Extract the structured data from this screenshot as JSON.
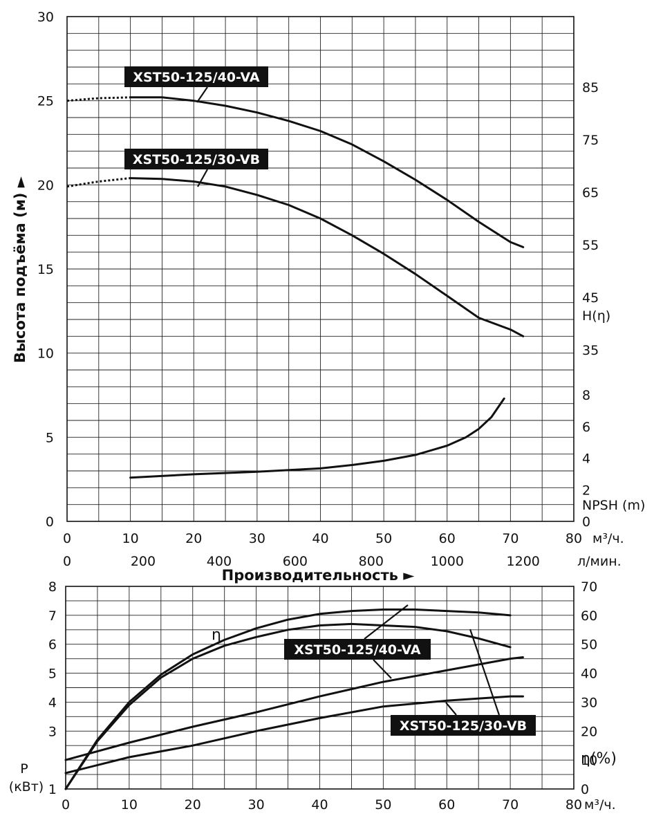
{
  "chart_data": [
    {
      "type": "line",
      "ylabel": "Высота подъёма (м) ►",
      "ylim": [
        0,
        30
      ],
      "yticks": [
        0,
        5,
        10,
        15,
        20,
        25,
        30
      ],
      "xlim": [
        0,
        80
      ],
      "xticks": [
        0,
        10,
        20,
        30,
        40,
        50,
        60,
        70,
        80
      ],
      "x_unit": "м³/ч.",
      "x2ticks": [
        "0",
        "200",
        "400",
        "600",
        "800",
        "1000",
        "1200"
      ],
      "x2_unit": "л/мин.",
      "xlabel": "Производительность ►",
      "right_h_ticks": [
        "85",
        "75",
        "65",
        "55",
        "45",
        "35"
      ],
      "right_h_label": "H(η)",
      "right_npsh_ticks": [
        "8",
        "6",
        "4",
        "2",
        "0"
      ],
      "right_npsh_label": "NPSH (m)",
      "grid": true,
      "series": [
        {
          "name": "XST50-125/40-VA",
          "x": [
            10,
            15,
            20,
            25,
            30,
            35,
            40,
            45,
            50,
            55,
            60,
            65,
            70,
            72
          ],
          "values": [
            25.2,
            25.2,
            25.0,
            24.7,
            24.3,
            23.8,
            23.2,
            22.4,
            21.4,
            20.3,
            19.1,
            17.8,
            16.6,
            16.3
          ],
          "dotted_start": {
            "x": [
              0,
              5,
              10
            ],
            "values": [
              25.0,
              25.15,
              25.2
            ]
          }
        },
        {
          "name": "XST50-125/30-VB",
          "x": [
            10,
            15,
            20,
            25,
            30,
            35,
            40,
            45,
            50,
            55,
            60,
            65,
            70,
            72
          ],
          "values": [
            20.4,
            20.35,
            20.2,
            19.9,
            19.4,
            18.8,
            18.0,
            17.0,
            15.9,
            14.7,
            13.4,
            12.1,
            11.4,
            11.0
          ],
          "dotted_start": {
            "x": [
              0,
              5,
              10
            ],
            "values": [
              19.9,
              20.2,
              20.4
            ]
          }
        },
        {
          "name": "NPSH",
          "x": [
            10,
            20,
            30,
            40,
            45,
            50,
            55,
            60,
            63,
            65,
            67,
            69
          ],
          "values": [
            2.6,
            2.8,
            2.95,
            3.15,
            3.35,
            3.6,
            3.95,
            4.5,
            5.0,
            5.5,
            6.2,
            7.3
          ]
        }
      ]
    },
    {
      "type": "line",
      "ylabel": "P (кВт)",
      "ylim_left": [
        1,
        8
      ],
      "yticks_left": [
        1,
        3,
        4,
        5,
        6,
        7,
        8
      ],
      "ylabel_right": "η(%)",
      "ylim_right": [
        0,
        70
      ],
      "yticks_right": [
        0,
        10,
        20,
        30,
        40,
        50,
        60,
        70
      ],
      "xlim": [
        0,
        80
      ],
      "xticks": [
        0,
        10,
        20,
        30,
        40,
        50,
        60,
        70,
        80
      ],
      "x_unit": "м³/ч.",
      "eta_label": "η",
      "grid": true,
      "series": [
        {
          "name": "η XST50-125/40-VA",
          "x": [
            0,
            5,
            10,
            15,
            20,
            25,
            30,
            35,
            40,
            45,
            50,
            55,
            60,
            65,
            70
          ],
          "values": [
            0,
            17,
            30,
            39.5,
            46.5,
            51.5,
            55.5,
            58.5,
            60.5,
            61.5,
            62,
            62,
            61.5,
            61,
            60
          ]
        },
        {
          "name": "η XST50-125/30-VB",
          "x": [
            0,
            5,
            10,
            15,
            20,
            25,
            30,
            35,
            40,
            45,
            50,
            55,
            60,
            65,
            70
          ],
          "values": [
            0,
            16.5,
            29,
            38.5,
            45,
            49.5,
            52.5,
            55,
            56.5,
            57,
            56.5,
            56,
            54.5,
            52,
            49
          ]
        },
        {
          "name": "P XST50-125/40-VA",
          "x": [
            0,
            10,
            20,
            30,
            40,
            50,
            60,
            70,
            72
          ],
          "values": [
            2.0,
            2.6,
            3.15,
            3.65,
            4.2,
            4.7,
            5.1,
            5.5,
            5.55
          ]
        },
        {
          "name": "P XST50-125/30-VB",
          "x": [
            0,
            10,
            20,
            30,
            40,
            50,
            60,
            70,
            72
          ],
          "values": [
            1.55,
            2.1,
            2.5,
            3.0,
            3.45,
            3.85,
            4.05,
            4.2,
            4.2
          ]
        }
      ]
    }
  ]
}
